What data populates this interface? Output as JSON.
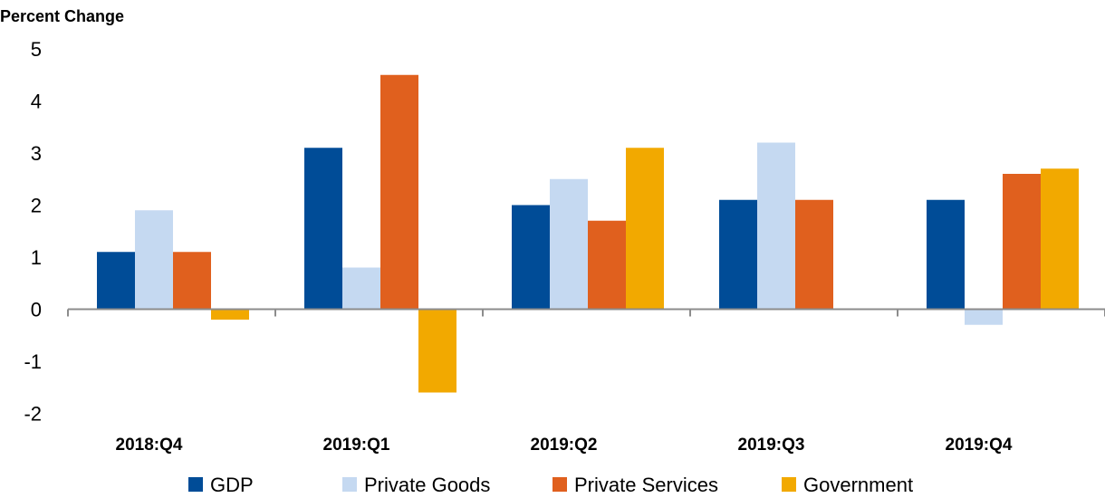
{
  "chart_data": {
    "type": "bar",
    "title": "",
    "ylabel": "Percent Change",
    "xlabel": "",
    "categories": [
      "2018:Q4",
      "2019:Q1",
      "2019:Q2",
      "2019:Q3",
      "2019:Q4"
    ],
    "yticks": [
      "5",
      "4",
      "3",
      "2",
      "1",
      "0",
      "-1",
      "-2"
    ],
    "ylim": [
      -2,
      5
    ],
    "grid": false,
    "legend": "bottom",
    "series": [
      {
        "name": "GDP",
        "color": "#004C97",
        "values": [
          1.1,
          3.1,
          2.0,
          2.1,
          2.1
        ]
      },
      {
        "name": "Private Goods",
        "color": "#C5D9F1",
        "values": [
          1.9,
          0.8,
          2.5,
          3.2,
          -0.3
        ]
      },
      {
        "name": "Private Services",
        "color": "#E0601E",
        "values": [
          1.1,
          4.5,
          1.7,
          2.1,
          2.6
        ]
      },
      {
        "name": "Government",
        "color": "#F2A900",
        "values": [
          -0.2,
          -1.6,
          3.1,
          0.0,
          2.7
        ]
      }
    ]
  }
}
